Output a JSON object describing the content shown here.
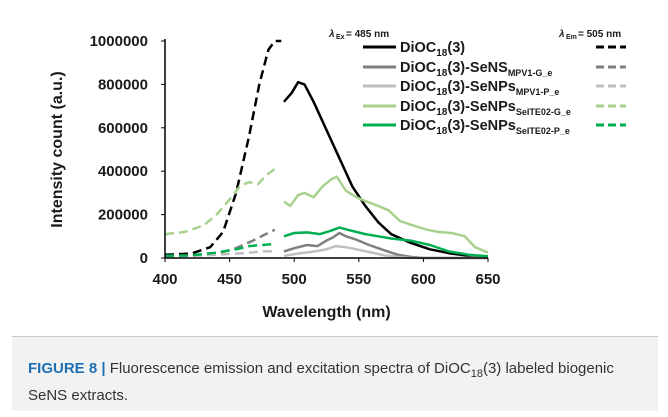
{
  "chart_data": {
    "type": "line",
    "xlabel": "Wavelength (nm)",
    "ylabel": "Intensity count (a.u.)",
    "xlim": [
      400,
      650
    ],
    "ylim": [
      0,
      1000000
    ],
    "x_ticks": [
      "400",
      "450",
      "500",
      "550",
      "600",
      "650"
    ],
    "y_ticks": [
      "0",
      "200000",
      "400000",
      "600000",
      "800000",
      "1000000"
    ],
    "grid": false,
    "legend_position": "top-right",
    "excitation_header": "= 485 nm",
    "emission_header": "= 505 nm",
    "series": [
      {
        "name": "DiOC18(3)",
        "name_parts": {
          "a": "DiOC",
          "sub1": "18",
          "b": "(3)",
          "sub2": ""
        },
        "color": "#000000",
        "excitation": [
          [
            400,
            15000
          ],
          [
            420,
            20000
          ],
          [
            435,
            50000
          ],
          [
            445,
            120000
          ],
          [
            455,
            300000
          ],
          [
            465,
            560000
          ],
          [
            473,
            800000
          ],
          [
            480,
            960000
          ],
          [
            485,
            1000000
          ],
          [
            490,
            1000000
          ]
        ],
        "emission": [
          [
            492,
            720000
          ],
          [
            498,
            760000
          ],
          [
            503,
            810000
          ],
          [
            508,
            800000
          ],
          [
            515,
            720000
          ],
          [
            525,
            590000
          ],
          [
            535,
            460000
          ],
          [
            545,
            330000
          ],
          [
            555,
            240000
          ],
          [
            565,
            165000
          ],
          [
            575,
            110000
          ],
          [
            590,
            70000
          ],
          [
            605,
            40000
          ],
          [
            620,
            22000
          ],
          [
            635,
            10000
          ],
          [
            650,
            5000
          ]
        ]
      },
      {
        "name": "DiOC18(3)-SeNSMPV1-G_e",
        "name_parts": {
          "a": "DiOC",
          "sub1": "18",
          "b": "(3)-SeNS",
          "sub2": "MPV1-G_e"
        },
        "color": "#7f7f7f",
        "excitation": [
          [
            400,
            10000
          ],
          [
            420,
            12000
          ],
          [
            440,
            20000
          ],
          [
            455,
            45000
          ],
          [
            468,
            80000
          ],
          [
            478,
            110000
          ],
          [
            485,
            130000
          ]
        ],
        "emission": [
          [
            492,
            30000
          ],
          [
            500,
            45000
          ],
          [
            510,
            60000
          ],
          [
            518,
            55000
          ],
          [
            525,
            80000
          ],
          [
            530,
            95000
          ],
          [
            535,
            115000
          ],
          [
            540,
            100000
          ],
          [
            548,
            85000
          ],
          [
            558,
            60000
          ],
          [
            570,
            35000
          ],
          [
            580,
            15000
          ],
          [
            590,
            5000
          ],
          [
            600,
            0
          ],
          [
            650,
            0
          ]
        ]
      },
      {
        "name": "DiOC18(3)-SeNPsMPV1-P_e",
        "name_parts": {
          "a": "DiOC",
          "sub1": "18",
          "b": "(3)-SeNPs",
          "sub2": "MPV1-P_e"
        },
        "color": "#bfbfbf",
        "excitation": [
          [
            400,
            8000
          ],
          [
            420,
            10000
          ],
          [
            440,
            15000
          ],
          [
            460,
            22000
          ],
          [
            475,
            30000
          ],
          [
            485,
            32000
          ]
        ],
        "emission": [
          [
            492,
            10000
          ],
          [
            505,
            22000
          ],
          [
            515,
            30000
          ],
          [
            525,
            40000
          ],
          [
            532,
            55000
          ],
          [
            540,
            50000
          ],
          [
            550,
            38000
          ],
          [
            560,
            25000
          ],
          [
            570,
            12000
          ],
          [
            580,
            5000
          ],
          [
            590,
            0
          ],
          [
            650,
            0
          ]
        ]
      },
      {
        "name": "DiOC18(3)-SeNPsSeITE02-G_e",
        "name_parts": {
          "a": "DiOC",
          "sub1": "18",
          "b": "(3)-SeNPs",
          "sub2": "SeITE02-G_e"
        },
        "color": "#a9d18e",
        "excitation": [
          [
            400,
            110000
          ],
          [
            415,
            120000
          ],
          [
            430,
            150000
          ],
          [
            440,
            200000
          ],
          [
            450,
            270000
          ],
          [
            458,
            330000
          ],
          [
            465,
            350000
          ],
          [
            472,
            340000
          ],
          [
            478,
            380000
          ],
          [
            485,
            410000
          ]
        ],
        "emission": [
          [
            492,
            260000
          ],
          [
            497,
            240000
          ],
          [
            503,
            290000
          ],
          [
            508,
            300000
          ],
          [
            515,
            280000
          ],
          [
            522,
            330000
          ],
          [
            528,
            360000
          ],
          [
            533,
            375000
          ],
          [
            540,
            310000
          ],
          [
            548,
            280000
          ],
          [
            556,
            260000
          ],
          [
            565,
            240000
          ],
          [
            573,
            220000
          ],
          [
            582,
            170000
          ],
          [
            592,
            150000
          ],
          [
            603,
            130000
          ],
          [
            612,
            120000
          ],
          [
            622,
            115000
          ],
          [
            632,
            100000
          ],
          [
            640,
            50000
          ],
          [
            650,
            25000
          ]
        ]
      },
      {
        "name": "DiOC18(3)-SeNPsSeITE02-P_e",
        "name_parts": {
          "a": "DiOC",
          "sub1": "18",
          "b": "(3)-SeNPs",
          "sub2": "SeITE02-P_e"
        },
        "color": "#00b050",
        "excitation": [
          [
            400,
            10000
          ],
          [
            420,
            12000
          ],
          [
            440,
            25000
          ],
          [
            455,
            40000
          ],
          [
            465,
            55000
          ],
          [
            475,
            60000
          ],
          [
            485,
            65000
          ]
        ],
        "emission": [
          [
            492,
            100000
          ],
          [
            500,
            115000
          ],
          [
            510,
            118000
          ],
          [
            520,
            110000
          ],
          [
            528,
            125000
          ],
          [
            535,
            140000
          ],
          [
            545,
            125000
          ],
          [
            555,
            110000
          ],
          [
            565,
            100000
          ],
          [
            575,
            90000
          ],
          [
            590,
            80000
          ],
          [
            605,
            60000
          ],
          [
            620,
            30000
          ],
          [
            635,
            15000
          ],
          [
            650,
            8000
          ]
        ]
      }
    ]
  },
  "caption": {
    "label": "FIGURE 8 |",
    "text_before": " Fluorescence emission and excitation spectra of DiOC",
    "sub": "18",
    "text_after": "(3) labeled biogenic SeNS extracts."
  }
}
